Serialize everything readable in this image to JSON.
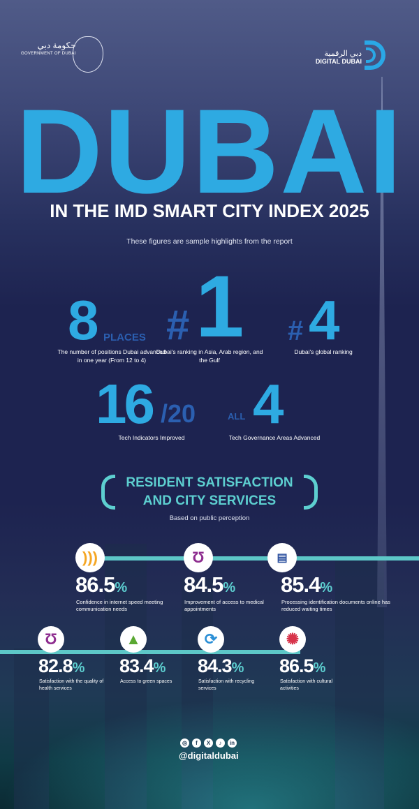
{
  "header": {
    "gov_arabic": "حكومة دبي",
    "gov_english": "GOVERNMENT OF DUBAI",
    "dd_arabic": "دبي الرقمية",
    "dd_english": "DIGITAL DUBAI"
  },
  "title": "DUBAI",
  "subtitle": "IN THE IMD SMART CITY INDEX 2025",
  "note": "These figures are sample highlights from the report",
  "stats": [
    {
      "value": "8",
      "suffix": "PLACES",
      "caption": "The number of positions Dubai advanced in one year (From 12 to 4)"
    },
    {
      "prefix": "#",
      "value": "1",
      "caption": "Dubai's ranking in Asia, Arab region, and the Gulf"
    },
    {
      "prefix": "#",
      "value": "4",
      "caption": "Dubai's global ranking"
    },
    {
      "value": "16",
      "suffix": "/20",
      "caption": "Tech Indicators Improved"
    },
    {
      "prefix": "ALL",
      "value": "4",
      "caption": "Tech Governance Areas Advanced"
    }
  ],
  "section": {
    "line1": "RESIDENT SATISFACTION",
    "line2": "AND CITY SERVICES",
    "sub": "Based on public perception"
  },
  "metrics": [
    {
      "icon": "wifi-icon",
      "value": "86.5",
      "unit": "%",
      "desc": "Confidence in internet speed meeting communication needs"
    },
    {
      "icon": "stethoscope-icon",
      "value": "84.5",
      "unit": "%",
      "desc": "Improvement of access to medical appointments"
    },
    {
      "icon": "id-card-icon",
      "value": "85.4",
      "unit": "%",
      "desc": "Processing identification documents online has reduced waiting times"
    },
    {
      "icon": "stethoscope-icon",
      "value": "82.8",
      "unit": "%",
      "desc": "Satisfaction with the quality of health services"
    },
    {
      "icon": "tree-icon",
      "value": "83.4",
      "unit": "%",
      "desc": "Access to green spaces"
    },
    {
      "icon": "recycle-icon",
      "value": "84.3",
      "unit": "%",
      "desc": "Satisfaction with recycling services"
    },
    {
      "icon": "fireworks-icon",
      "value": "86.5",
      "unit": "%",
      "desc": "Satisfaction with cultural activities"
    }
  ],
  "footer": {
    "handle": "@digitaldubai",
    "social": [
      "instagram",
      "facebook",
      "x",
      "tiktok",
      "linkedin"
    ]
  },
  "colors": {
    "accent": "#2eaae2",
    "teal": "#5dcfd0",
    "bg": "#1d2350"
  }
}
